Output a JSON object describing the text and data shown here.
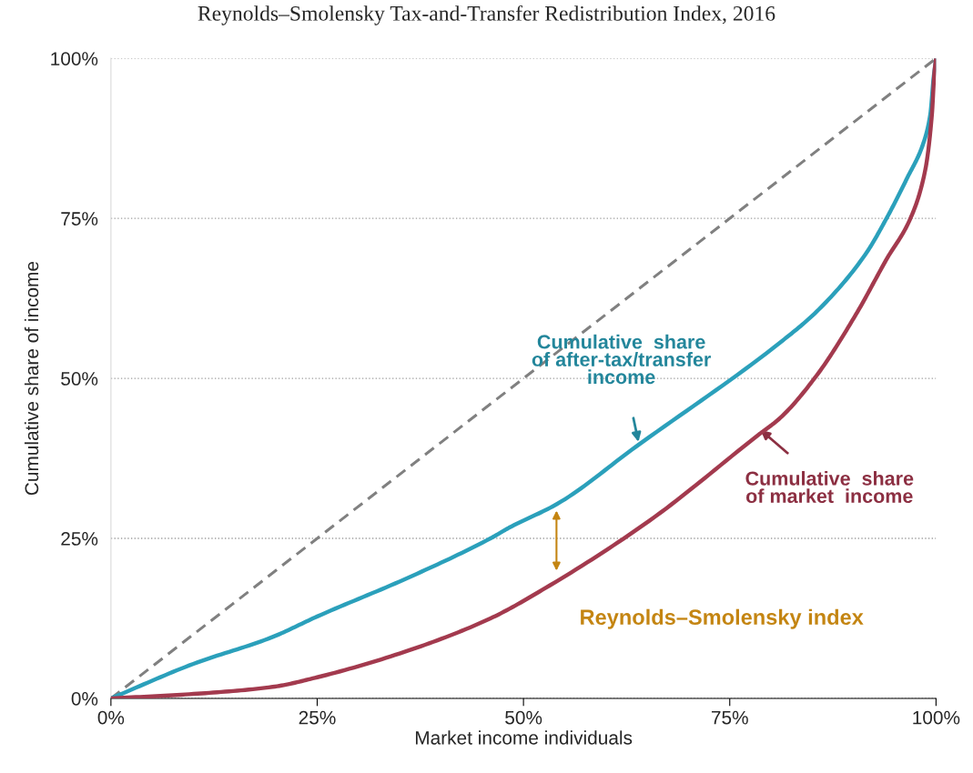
{
  "chart_data": {
    "type": "line",
    "title": "Reynolds–Smolensky Tax-and-Transfer Redistribution Index, 2016",
    "xlabel": "Market income individuals",
    "ylabel": "Cumulative share of income",
    "xlim": [
      0,
      100
    ],
    "ylim": [
      0,
      100
    ],
    "xticks": [
      {
        "value": 0,
        "label": "0%"
      },
      {
        "value": 25,
        "label": "25%"
      },
      {
        "value": 50,
        "label": "50%"
      },
      {
        "value": 75,
        "label": "75%"
      },
      {
        "value": 100,
        "label": "100%"
      }
    ],
    "yticks": [
      {
        "value": 0,
        "label": "0%"
      },
      {
        "value": 25,
        "label": "25%"
      },
      {
        "value": 50,
        "label": "50%"
      },
      {
        "value": 75,
        "label": "75%"
      },
      {
        "value": 100,
        "label": "100%"
      }
    ],
    "grid": "y",
    "marker": "none",
    "series": [
      {
        "color": "#808080",
        "line_style": "dashed",
        "x": [
          0,
          100
        ],
        "values": [
          0,
          100
        ]
      },
      {
        "name": "Cumulative  share\nof after-tax/transfer\nincome",
        "color": "#2ba0bb",
        "x": [
          0,
          10,
          19.6,
          25,
          36.1,
          46,
          48.3,
          54.1,
          63.6,
          81.2,
          85.5,
          91.4,
          94,
          96.5,
          98.4,
          99.3,
          99.7,
          100
        ],
        "values": [
          0,
          5.4,
          9.6,
          12.8,
          18.9,
          25,
          26.7,
          30.4,
          39.3,
          55.7,
          60.4,
          69.3,
          75,
          81.3,
          86.5,
          91.2,
          96.9,
          100
        ]
      },
      {
        "name": "Cumulative  share\nof market  income",
        "color": "#a33a4e",
        "x": [
          0,
          10,
          19.6,
          25,
          36.1,
          46,
          52.6,
          65.3,
          78.5,
          81.1,
          85.5,
          90.3,
          94,
          96.9,
          98.7,
          99.5,
          99.8,
          100
        ],
        "values": [
          0,
          0.7,
          1.8,
          3.3,
          7.5,
          12.5,
          17.2,
          27.8,
          41.2,
          43.8,
          50.4,
          60,
          68.6,
          75,
          82.6,
          91.2,
          97.7,
          100
        ]
      }
    ],
    "annotations": [
      "Reynolds–Smolensky index"
    ]
  }
}
